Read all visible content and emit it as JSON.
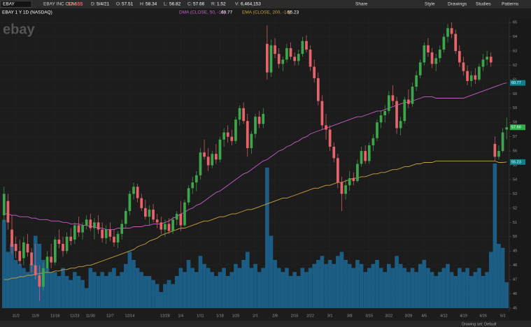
{
  "header": {
    "symbol": "EBAY",
    "company": "EBAY INC COM",
    "last": "57.655",
    "fields": [
      {
        "label": "D:",
        "value": "5/4/21"
      },
      {
        "label": "O:"
      },
      {
        "label": "H:"
      },
      {
        "label": "L:"
      },
      {
        "label": "C:"
      },
      {
        "label": "R:",
        "value": "1.52"
      },
      {
        "label": "V:",
        "value": "6,464,153"
      }
    ],
    "tools": [
      "Share",
      "Style",
      "Drawings",
      "Studies",
      "Patterns"
    ],
    "chart_label": "EBAY 1 Y 1D (NASDAQ)",
    "watermark": "ebay"
  },
  "footer": {
    "drawing_set": "Drawing set: Default"
  },
  "chart_data": {
    "type": "candlestick",
    "categories": [
      null,
      null,
      null,
      "11/2",
      null,
      null,
      null,
      null,
      "11/9",
      null,
      null,
      null,
      null,
      "11/16",
      null,
      null,
      null,
      null,
      "11/23",
      null,
      null,
      null,
      "11/30",
      null,
      null,
      null,
      null,
      "12/7",
      null,
      null,
      null,
      null,
      "12/14",
      null,
      null,
      null,
      null,
      null,
      null,
      null,
      null,
      "12/28",
      null,
      null,
      null,
      "1/4",
      null,
      null,
      null,
      null,
      "1/11",
      null,
      null,
      null,
      null,
      "1/18",
      null,
      null,
      null,
      "1/25",
      null,
      null,
      null,
      null,
      "2/1",
      null,
      null,
      null,
      null,
      "2/8",
      null,
      null,
      null,
      null,
      "2/15",
      null,
      null,
      null,
      "2/22",
      null,
      null,
      null,
      null,
      "3/1",
      null,
      null,
      null,
      null,
      "3/8",
      null,
      null,
      null,
      null,
      "3/15",
      null,
      null,
      null,
      null,
      "3/22",
      null,
      null,
      null,
      null,
      "3/29",
      null,
      null,
      null,
      "4/5",
      null,
      null,
      null,
      null,
      "4/12",
      null,
      null,
      null,
      null,
      "4/19",
      null,
      null,
      null,
      null,
      "4/26",
      null,
      null,
      null,
      null,
      "5/3",
      null
    ],
    "ohlc": [
      [
        51.5,
        53.5,
        51,
        53
      ],
      [
        52.5,
        53,
        50.5,
        51
      ],
      [
        50.5,
        51.5,
        48.8,
        49.3
      ],
      [
        49.5,
        50,
        48.5,
        49
      ],
      [
        49,
        49.8,
        48,
        48.3
      ],
      [
        48.5,
        50,
        48,
        49.6
      ],
      [
        49.5,
        50.2,
        48.6,
        48.9
      ],
      [
        48.9,
        49.2,
        47.5,
        48
      ],
      [
        48,
        49.5,
        47,
        47.3
      ],
      [
        47.3,
        48,
        45.5,
        46.5
      ],
      [
        46.5,
        48.2,
        46.2,
        47.8
      ],
      [
        47.8,
        49,
        47.5,
        48.6
      ],
      [
        48.6,
        49.5,
        47.8,
        48.2
      ],
      [
        48.2,
        50,
        48,
        49.8
      ],
      [
        49.8,
        50.5,
        49.2,
        49.5
      ],
      [
        49.5,
        50,
        48.6,
        49
      ],
      [
        49,
        50.3,
        48.8,
        50
      ],
      [
        50,
        50.6,
        49.4,
        49.7
      ],
      [
        49.8,
        51,
        49.5,
        50.8
      ],
      [
        50.8,
        51.4,
        50,
        50.3
      ],
      [
        50.3,
        51,
        49.8,
        50.8
      ],
      [
        50.8,
        51.5,
        50.5,
        51.2
      ],
      [
        51.2,
        51.6,
        50.4,
        50.6
      ],
      [
        50.6,
        51.3,
        49.8,
        51
      ],
      [
        51,
        51.5,
        50.2,
        50.5
      ],
      [
        50.5,
        51,
        49.6,
        49.9
      ],
      [
        49.9,
        50.8,
        49.5,
        50.5
      ],
      [
        50.5,
        51,
        49.7,
        50
      ],
      [
        50,
        50.5,
        49.3,
        49.6
      ],
      [
        49.6,
        50.4,
        49.2,
        50.2
      ],
      [
        50.2,
        51.2,
        49.8,
        50.9
      ],
      [
        50.9,
        52,
        50.6,
        51.8
      ],
      [
        51.8,
        53.2,
        51.5,
        53
      ],
      [
        53,
        53.8,
        52.6,
        53.5
      ],
      [
        53.5,
        53.7,
        52.4,
        52.7
      ],
      [
        52.7,
        53,
        51.8,
        52
      ],
      [
        52,
        52.6,
        51.2,
        51.4
      ],
      [
        51.4,
        52.2,
        50.8,
        51.9
      ],
      [
        51.9,
        52.3,
        51,
        51.2
      ],
      [
        51.2,
        51.6,
        50.6,
        51
      ],
      [
        51,
        51.4,
        50.2,
        50.5
      ],
      [
        50.5,
        51.2,
        50,
        50.9
      ],
      [
        50.9,
        51.3,
        50.2,
        50.4
      ],
      [
        50.4,
        51.4,
        50.2,
        51.2
      ],
      [
        51.2,
        51.8,
        50.8,
        51.6
      ],
      [
        51.6,
        52.5,
        50.4,
        50.8
      ],
      [
        50.8,
        52.6,
        50.7,
        52.4
      ],
      [
        52.4,
        53.6,
        52.2,
        53.4
      ],
      [
        53.4,
        54.2,
        53,
        53.8
      ],
      [
        53.8,
        54.6,
        53.2,
        54.3
      ],
      [
        54.3,
        56.2,
        54,
        55.9
      ],
      [
        55.9,
        56.8,
        55.4,
        55.6
      ],
      [
        55.6,
        56.2,
        54.6,
        55
      ],
      [
        55,
        56,
        54.8,
        55.8
      ],
      [
        55.8,
        56.5,
        55.1,
        55.4
      ],
      [
        55.4,
        57,
        55.2,
        56.8
      ],
      [
        56.8,
        57.6,
        56.3,
        57.3
      ],
      [
        57.3,
        57.8,
        56.6,
        57
      ],
      [
        57,
        57.5,
        56.4,
        56.7
      ],
      [
        56.7,
        58.4,
        56.5,
        58.2
      ],
      [
        58.2,
        59.2,
        57.8,
        59
      ],
      [
        59,
        59.4,
        57.9,
        58.1
      ],
      [
        58.1,
        58.6,
        55.6,
        56.2
      ],
      [
        56.2,
        57.4,
        55.8,
        57.2
      ],
      [
        57.2,
        58.6,
        56.9,
        58.4
      ],
      [
        58.4,
        58.8,
        57.6,
        57.9
      ],
      [
        57.9,
        59,
        57.6,
        58.6
      ],
      [
        63.5,
        64.8,
        61,
        61.5
      ],
      [
        61.5,
        63.8,
        61.2,
        63.4
      ],
      [
        63.4,
        63.9,
        62.5,
        62.8
      ],
      [
        62.8,
        63.2,
        61.8,
        62.1
      ],
      [
        62.1,
        62.6,
        61.6,
        62.4
      ],
      [
        62.4,
        63.5,
        62.2,
        63.2
      ],
      [
        63.2,
        63.6,
        62.4,
        62.6
      ],
      [
        62.6,
        62.9,
        62,
        62.3
      ],
      [
        62.3,
        63.1,
        62,
        62.8
      ],
      [
        62.8,
        64,
        62.6,
        63.7
      ],
      [
        63.7,
        64.1,
        62.9,
        63.1
      ],
      [
        63.1,
        63.4,
        61.6,
        61.9
      ],
      [
        61.9,
        62.4,
        60.8,
        61.1
      ],
      [
        61.1,
        61.5,
        59.2,
        59.5
      ],
      [
        59.5,
        59.9,
        57.5,
        57.8
      ],
      [
        57.8,
        58.6,
        56.8,
        57.5
      ],
      [
        57.5,
        57.8,
        56,
        56.3
      ],
      [
        56.3,
        56.6,
        55.2,
        55.5
      ],
      [
        55.5,
        55.8,
        53.4,
        53.8
      ],
      [
        53.8,
        54.2,
        51.8,
        53
      ],
      [
        53,
        54,
        52.6,
        53.6
      ],
      [
        53.6,
        54.6,
        53.2,
        54.1
      ],
      [
        54.1,
        54.5,
        53.6,
        53.9
      ],
      [
        53.9,
        55.4,
        53.8,
        55.1
      ],
      [
        55.1,
        56.3,
        54.9,
        56
      ],
      [
        56,
        56.4,
        55.1,
        55.3
      ],
      [
        55.3,
        56.6,
        55.1,
        56.4
      ],
      [
        56.4,
        57.2,
        56,
        56.9
      ],
      [
        56.9,
        58.2,
        56.7,
        58
      ],
      [
        58,
        58.8,
        57.6,
        58.5
      ],
      [
        58.5,
        59.2,
        58,
        58.8
      ],
      [
        58.8,
        60.2,
        58.6,
        59.9
      ],
      [
        59.9,
        60.6,
        59.2,
        59.5
      ],
      [
        59.5,
        59.8,
        57.2,
        57.6
      ],
      [
        57.6,
        58.4,
        57.1,
        58.1
      ],
      [
        58.1,
        59.8,
        57.9,
        59.6
      ],
      [
        59.6,
        60.3,
        59,
        59.3
      ],
      [
        59.3,
        60.8,
        59.1,
        60.5
      ],
      [
        60.5,
        61.6,
        60.2,
        61.3
      ],
      [
        61.3,
        62.4,
        61.1,
        62.2
      ],
      [
        62.2,
        63.6,
        62,
        63.4
      ],
      [
        63.4,
        63.9,
        62.6,
        62.9
      ],
      [
        62.9,
        63.2,
        61.8,
        62.1
      ],
      [
        62.1,
        62.8,
        61.6,
        62.5
      ],
      [
        62.5,
        63.4,
        62.2,
        63.1
      ],
      [
        63.1,
        64.2,
        62.9,
        64
      ],
      [
        64,
        64.9,
        63.6,
        64.6
      ],
      [
        64.6,
        65,
        63.9,
        64.2
      ],
      [
        64.2,
        64.5,
        62.8,
        63
      ],
      [
        63,
        63.4,
        61.9,
        62.2
      ],
      [
        62.2,
        62.6,
        61.3,
        61.6
      ],
      [
        61.6,
        62,
        60.6,
        60.9
      ],
      [
        60.9,
        61.6,
        60.5,
        61.3
      ],
      [
        61.3,
        61.8,
        60.7,
        61
      ],
      [
        61,
        62.1,
        60.9,
        61.9
      ],
      [
        61.9,
        62.8,
        61.6,
        62.4
      ],
      [
        62.4,
        63,
        62,
        62.6
      ],
      [
        62.6,
        62.9,
        61.9,
        62.2
      ],
      [
        56.5,
        57,
        55.3,
        55.6
      ],
      [
        55.6,
        56.4,
        55.4,
        56
      ],
      [
        56,
        57.6,
        55.9,
        57.3
      ],
      [
        57.51,
        58.34,
        56.82,
        57.66
      ]
    ],
    "volume": [
      22,
      14,
      16,
      12,
      11,
      10,
      9,
      11,
      18,
      16,
      12,
      10,
      9,
      9,
      8,
      10,
      8,
      7,
      9,
      8,
      7,
      5,
      10,
      9,
      8,
      9,
      8,
      9,
      10,
      8,
      9,
      11,
      14,
      12,
      10,
      9,
      8,
      8,
      7,
      6,
      4,
      6,
      7,
      6,
      8,
      10,
      9,
      12,
      10,
      9,
      13,
      11,
      10,
      9,
      8,
      9,
      10,
      8,
      9,
      11,
      10,
      12,
      14,
      10,
      11,
      9,
      10,
      35,
      18,
      12,
      10,
      9,
      10,
      8,
      9,
      8,
      10,
      9,
      10,
      11,
      12,
      13,
      11,
      12,
      11,
      13,
      14,
      12,
      11,
      10,
      12,
      11,
      9,
      10,
      11,
      12,
      10,
      9,
      11,
      10,
      13,
      11,
      10,
      9,
      10,
      9,
      11,
      12,
      10,
      9,
      8,
      9,
      10,
      11,
      9,
      8,
      10,
      9,
      10,
      8,
      9,
      10,
      8,
      9,
      14,
      36,
      16,
      15,
      6.464153
    ],
    "volume_lim": [
      0,
      40
    ],
    "series": [
      {
        "name": "DMA (CLOSE, 50, -14)",
        "color": "#c65ec8",
        "values": [
          51.6,
          51.6,
          51.5,
          51.5,
          51.4,
          51.4,
          51.4,
          51.3,
          51.3,
          51.2,
          51.2,
          51.2,
          51.1,
          51.1,
          51.1,
          51.0,
          51.0,
          50.9,
          50.9,
          50.9,
          50.8,
          50.8,
          50.7,
          50.7,
          50.6,
          50.6,
          50.5,
          50.5,
          50.5,
          50.6,
          50.6,
          50.6,
          50.6,
          50.7,
          50.7,
          50.7,
          50.8,
          50.8,
          50.9,
          50.9,
          50.9,
          51.0,
          51.1,
          51.3,
          51.4,
          51.6,
          51.7,
          51.9,
          52.0,
          52.2,
          52.3,
          52.5,
          52.7,
          52.9,
          53.1,
          53.2,
          53.4,
          53.6,
          53.8,
          54.0,
          54.2,
          54.4,
          54.5,
          54.7,
          54.9,
          55.1,
          55.3,
          55.4,
          55.6,
          55.8,
          56.0,
          56.1,
          56.3,
          56.4,
          56.6,
          56.7,
          56.9,
          57.0,
          57.2,
          57.3,
          57.4,
          57.5,
          57.6,
          57.7,
          57.8,
          57.9,
          58.0,
          58.1,
          58.2,
          58.3,
          58.4,
          58.4,
          58.5,
          58.6,
          58.7,
          58.8,
          58.8,
          58.9,
          59.0,
          59.1,
          59.2,
          59.3,
          59.4,
          59.4,
          59.5,
          59.6,
          59.7,
          59.8,
          59.8,
          59.8,
          59.7,
          59.7,
          59.7,
          59.7,
          59.7,
          59.7,
          59.7,
          59.7,
          59.8,
          59.9,
          60.0,
          60.1,
          60.2,
          60.3,
          60.4,
          60.5,
          60.6,
          60.7,
          60.77
        ]
      },
      {
        "name": "EMA (CLOSE, 200, -14)",
        "color": "#c8a23a",
        "values": [
          47.0,
          47.0,
          47.1,
          47.1,
          47.2,
          47.2,
          47.3,
          47.3,
          47.4,
          47.4,
          47.5,
          47.5,
          47.5,
          47.6,
          47.6,
          47.7,
          47.7,
          47.8,
          47.8,
          47.9,
          47.9,
          48.0,
          48.0,
          48.1,
          48.2,
          48.3,
          48.4,
          48.5,
          48.6,
          48.7,
          48.8,
          48.9,
          49.0,
          49.1,
          49.3,
          49.4,
          49.5,
          49.7,
          49.8,
          49.9,
          50.1,
          50.2,
          50.3,
          50.4,
          50.5,
          50.6,
          50.6,
          50.7,
          50.8,
          50.9,
          51.0,
          51.1,
          51.1,
          51.2,
          51.3,
          51.4,
          51.4,
          51.5,
          51.6,
          51.6,
          51.7,
          51.8,
          51.9,
          51.9,
          52.0,
          52.1,
          52.2,
          52.3,
          52.4,
          52.5,
          52.6,
          52.7,
          52.7,
          52.8,
          52.9,
          53.0,
          53.1,
          53.2,
          53.3,
          53.4,
          53.4,
          53.5,
          53.6,
          53.6,
          53.7,
          53.8,
          53.8,
          53.9,
          54.0,
          54.1,
          54.1,
          54.2,
          54.2,
          54.3,
          54.4,
          54.4,
          54.5,
          54.5,
          54.6,
          54.7,
          54.7,
          54.8,
          54.9,
          54.9,
          55.0,
          55.1,
          55.1,
          55.2,
          55.2,
          55.2,
          55.3,
          55.3,
          55.3,
          55.3,
          55.3,
          55.3,
          55.3,
          55.3,
          55.3,
          55.3,
          55.3,
          55.3,
          55.3,
          55.3,
          55.3,
          55.3,
          55.2,
          55.2,
          55.23
        ]
      }
    ],
    "up_color": "#3da64a",
    "down_color": "#e8646c",
    "volume_color": "#1b5d84",
    "last_color": "#2eae4a",
    "ylim": [
      45,
      65.3
    ],
    "yticks": [
      45,
      46,
      47,
      48,
      49,
      50,
      51,
      52,
      53,
      54,
      55,
      56,
      57,
      58,
      59,
      60,
      61,
      62,
      63,
      64,
      65
    ],
    "grid": true
  }
}
